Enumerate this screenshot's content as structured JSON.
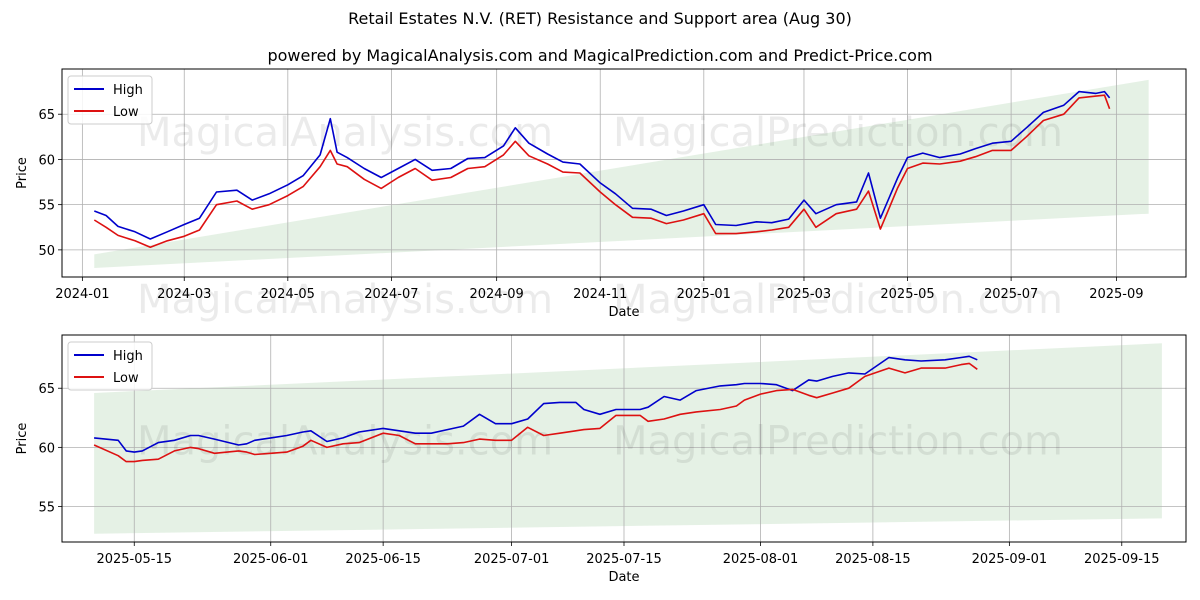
{
  "title": "Retail Estates N.V. (RET) Resistance and Support area (Aug 30)",
  "subtitle": "powered by MagicalAnalysis.com and MagicalPrediction.com and Predict-Price.com",
  "watermarks": {
    "analysis": "MagicalAnalysis.com",
    "prediction": "MagicalPrediction.com"
  },
  "colors": {
    "high": "#0000cc",
    "low": "#dd1111",
    "band": "#cfe6cf",
    "grid": "#b0b0b0"
  },
  "chart_data": [
    {
      "type": "line",
      "xlabel": "Date",
      "ylabel": "Price",
      "legend": "top-left",
      "grid": true,
      "x_range": [
        "2023-12-20",
        "2025-10-12"
      ],
      "ylim": [
        47,
        70
      ],
      "x_ticks": [
        "2024-01",
        "2024-03",
        "2024-05",
        "2024-07",
        "2024-09",
        "2024-11",
        "2025-01",
        "2025-03",
        "2025-05",
        "2025-07",
        "2025-09"
      ],
      "x_tick_dates": [
        "2024-01-01",
        "2024-03-01",
        "2024-05-01",
        "2024-07-01",
        "2024-09-01",
        "2024-11-01",
        "2025-01-01",
        "2025-03-01",
        "2025-05-01",
        "2025-07-01",
        "2025-09-01"
      ],
      "y_ticks": [
        50,
        55,
        60,
        65
      ],
      "band": {
        "start": "2024-01-08",
        "end": "2025-09-20",
        "upper": [
          49.5,
          68.8
        ],
        "lower": [
          48.0,
          54.0
        ]
      },
      "series": [
        {
          "name": "High",
          "x": [
            "2024-01-08",
            "2024-01-15",
            "2024-01-22",
            "2024-02-01",
            "2024-02-10",
            "2024-02-20",
            "2024-03-01",
            "2024-03-10",
            "2024-03-20",
            "2024-04-01",
            "2024-04-10",
            "2024-04-20",
            "2024-05-01",
            "2024-05-10",
            "2024-05-20",
            "2024-05-26",
            "2024-05-30",
            "2024-06-05",
            "2024-06-15",
            "2024-06-25",
            "2024-07-05",
            "2024-07-15",
            "2024-07-25",
            "2024-08-05",
            "2024-08-15",
            "2024-08-25",
            "2024-09-05",
            "2024-09-12",
            "2024-09-20",
            "2024-10-01",
            "2024-10-10",
            "2024-10-20",
            "2024-11-01",
            "2024-11-10",
            "2024-11-20",
            "2024-12-01",
            "2024-12-10",
            "2024-12-20",
            "2025-01-01",
            "2025-01-08",
            "2025-01-20",
            "2025-02-01",
            "2025-02-10",
            "2025-02-20",
            "2025-03-01",
            "2025-03-08",
            "2025-03-20",
            "2025-04-01",
            "2025-04-08",
            "2025-04-15",
            "2025-04-25",
            "2025-05-01",
            "2025-05-10",
            "2025-05-20",
            "2025-06-01",
            "2025-06-10",
            "2025-06-20",
            "2025-07-01",
            "2025-07-10",
            "2025-07-20",
            "2025-08-01",
            "2025-08-10",
            "2025-08-20",
            "2025-08-25",
            "2025-08-28"
          ],
          "values": [
            54.3,
            53.8,
            52.6,
            52.0,
            51.2,
            52.0,
            52.8,
            53.5,
            56.4,
            56.6,
            55.5,
            56.2,
            57.2,
            58.2,
            60.5,
            64.5,
            60.8,
            60.2,
            59.0,
            58.0,
            59.0,
            60.0,
            58.8,
            59.0,
            60.1,
            60.2,
            61.5,
            63.5,
            61.8,
            60.6,
            59.7,
            59.5,
            57.4,
            56.2,
            54.6,
            54.5,
            53.8,
            54.3,
            55.0,
            52.8,
            52.7,
            53.1,
            53.0,
            53.4,
            55.5,
            54.0,
            55.0,
            55.3,
            58.5,
            53.5,
            57.9,
            60.2,
            60.7,
            60.2,
            60.6,
            61.2,
            61.8,
            62.0,
            63.5,
            65.2,
            66.0,
            67.5,
            67.3,
            67.5,
            66.8
          ]
        },
        {
          "name": "Low",
          "x": [
            "2024-01-08",
            "2024-01-15",
            "2024-01-22",
            "2024-02-01",
            "2024-02-10",
            "2024-02-20",
            "2024-03-01",
            "2024-03-10",
            "2024-03-20",
            "2024-04-01",
            "2024-04-10",
            "2024-04-20",
            "2024-05-01",
            "2024-05-10",
            "2024-05-20",
            "2024-05-26",
            "2024-05-30",
            "2024-06-05",
            "2024-06-15",
            "2024-06-25",
            "2024-07-05",
            "2024-07-15",
            "2024-07-25",
            "2024-08-05",
            "2024-08-15",
            "2024-08-25",
            "2024-09-05",
            "2024-09-12",
            "2024-09-20",
            "2024-10-01",
            "2024-10-10",
            "2024-10-20",
            "2024-11-01",
            "2024-11-10",
            "2024-11-20",
            "2024-12-01",
            "2024-12-10",
            "2024-12-20",
            "2025-01-01",
            "2025-01-08",
            "2025-01-20",
            "2025-02-01",
            "2025-02-10",
            "2025-02-20",
            "2025-03-01",
            "2025-03-08",
            "2025-03-20",
            "2025-04-01",
            "2025-04-08",
            "2025-04-15",
            "2025-04-25",
            "2025-05-01",
            "2025-05-10",
            "2025-05-20",
            "2025-06-01",
            "2025-06-10",
            "2025-06-20",
            "2025-07-01",
            "2025-07-10",
            "2025-07-20",
            "2025-08-01",
            "2025-08-10",
            "2025-08-20",
            "2025-08-25",
            "2025-08-28"
          ],
          "values": [
            53.3,
            52.5,
            51.6,
            51.0,
            50.3,
            51.0,
            51.5,
            52.2,
            55.0,
            55.4,
            54.5,
            55.0,
            56.0,
            57.0,
            59.2,
            61.0,
            59.5,
            59.2,
            57.8,
            56.8,
            58.0,
            59.0,
            57.7,
            58.0,
            59.0,
            59.2,
            60.5,
            62.0,
            60.4,
            59.5,
            58.6,
            58.5,
            56.4,
            55.0,
            53.6,
            53.5,
            52.9,
            53.3,
            54.0,
            51.8,
            51.8,
            52.0,
            52.2,
            52.5,
            54.5,
            52.5,
            54.0,
            54.5,
            56.5,
            52.3,
            56.8,
            59.0,
            59.6,
            59.5,
            59.8,
            60.3,
            61.0,
            61.0,
            62.5,
            64.3,
            65.0,
            66.8,
            67.0,
            67.1,
            65.6
          ]
        }
      ]
    },
    {
      "type": "line",
      "xlabel": "Date",
      "ylabel": "Price",
      "legend": "top-left",
      "grid": true,
      "x_range": [
        "2025-05-06",
        "2025-09-23"
      ],
      "ylim": [
        52,
        69.5
      ],
      "x_ticks": [
        "2025-05-15",
        "2025-06-01",
        "2025-06-15",
        "2025-07-01",
        "2025-07-15",
        "2025-08-01",
        "2025-08-15",
        "2025-09-01",
        "2025-09-15"
      ],
      "y_ticks": [
        55,
        60,
        65
      ],
      "band": {
        "start": "2025-05-10",
        "end": "2025-09-20",
        "upper": [
          64.6,
          68.8
        ],
        "lower": [
          52.7,
          54.0
        ]
      },
      "series": [
        {
          "name": "High",
          "x": [
            "2025-05-10",
            "2025-05-13",
            "2025-05-14",
            "2025-05-15",
            "2025-05-16",
            "2025-05-18",
            "2025-05-20",
            "2025-05-22",
            "2025-05-23",
            "2025-05-25",
            "2025-05-28",
            "2025-05-29",
            "2025-05-30",
            "2025-06-01",
            "2025-06-03",
            "2025-06-05",
            "2025-06-06",
            "2025-06-08",
            "2025-06-10",
            "2025-06-12",
            "2025-06-15",
            "2025-06-17",
            "2025-06-19",
            "2025-06-21",
            "2025-06-23",
            "2025-06-25",
            "2025-06-27",
            "2025-06-29",
            "2025-07-01",
            "2025-07-03",
            "2025-07-05",
            "2025-07-07",
            "2025-07-09",
            "2025-07-10",
            "2025-07-12",
            "2025-07-14",
            "2025-07-15",
            "2025-07-17",
            "2025-07-18",
            "2025-07-20",
            "2025-07-22",
            "2025-07-24",
            "2025-07-27",
            "2025-07-29",
            "2025-07-30",
            "2025-08-01",
            "2025-08-03",
            "2025-08-05",
            "2025-08-07",
            "2025-08-08",
            "2025-08-10",
            "2025-08-12",
            "2025-08-14",
            "2025-08-17",
            "2025-08-19",
            "2025-08-21",
            "2025-08-24",
            "2025-08-26",
            "2025-08-27",
            "2025-08-28"
          ],
          "values": [
            60.8,
            60.6,
            59.7,
            59.6,
            59.7,
            60.4,
            60.6,
            61.0,
            61.0,
            60.7,
            60.2,
            60.3,
            60.6,
            60.8,
            61.0,
            61.3,
            61.4,
            60.5,
            60.8,
            61.3,
            61.6,
            61.4,
            61.2,
            61.2,
            61.5,
            61.8,
            62.8,
            62.0,
            62.0,
            62.4,
            63.7,
            63.8,
            63.8,
            63.2,
            62.8,
            63.2,
            63.2,
            63.2,
            63.4,
            64.3,
            64.0,
            64.8,
            65.2,
            65.3,
            65.4,
            65.4,
            65.3,
            64.8,
            65.7,
            65.6,
            66.0,
            66.3,
            66.2,
            67.6,
            67.4,
            67.3,
            67.4,
            67.6,
            67.7,
            67.4
          ]
        },
        {
          "name": "Low",
          "x": [
            "2025-05-10",
            "2025-05-13",
            "2025-05-14",
            "2025-05-15",
            "2025-05-16",
            "2025-05-18",
            "2025-05-20",
            "2025-05-22",
            "2025-05-23",
            "2025-05-25",
            "2025-05-28",
            "2025-05-29",
            "2025-05-30",
            "2025-06-01",
            "2025-06-03",
            "2025-06-05",
            "2025-06-06",
            "2025-06-08",
            "2025-06-10",
            "2025-06-12",
            "2025-06-15",
            "2025-06-17",
            "2025-06-19",
            "2025-06-21",
            "2025-06-23",
            "2025-06-25",
            "2025-06-27",
            "2025-06-29",
            "2025-07-01",
            "2025-07-03",
            "2025-07-05",
            "2025-07-07",
            "2025-07-09",
            "2025-07-10",
            "2025-07-12",
            "2025-07-14",
            "2025-07-15",
            "2025-07-17",
            "2025-07-18",
            "2025-07-20",
            "2025-07-22",
            "2025-07-24",
            "2025-07-27",
            "2025-07-29",
            "2025-07-30",
            "2025-08-01",
            "2025-08-03",
            "2025-08-05",
            "2025-08-07",
            "2025-08-08",
            "2025-08-10",
            "2025-08-12",
            "2025-08-14",
            "2025-08-17",
            "2025-08-19",
            "2025-08-21",
            "2025-08-24",
            "2025-08-26",
            "2025-08-27",
            "2025-08-28"
          ],
          "values": [
            60.2,
            59.3,
            58.8,
            58.8,
            58.9,
            59.0,
            59.7,
            60.0,
            59.9,
            59.5,
            59.7,
            59.6,
            59.4,
            59.5,
            59.6,
            60.1,
            60.6,
            60.0,
            60.3,
            60.4,
            61.2,
            61.0,
            60.3,
            60.3,
            60.3,
            60.4,
            60.7,
            60.6,
            60.6,
            61.7,
            61.0,
            61.2,
            61.4,
            61.5,
            61.6,
            62.7,
            62.7,
            62.7,
            62.2,
            62.4,
            62.8,
            63.0,
            63.2,
            63.5,
            64.0,
            64.5,
            64.8,
            64.9,
            64.4,
            64.2,
            64.6,
            65.0,
            66.0,
            66.7,
            66.3,
            66.7,
            66.7,
            67.0,
            67.1,
            66.6
          ]
        }
      ]
    }
  ]
}
